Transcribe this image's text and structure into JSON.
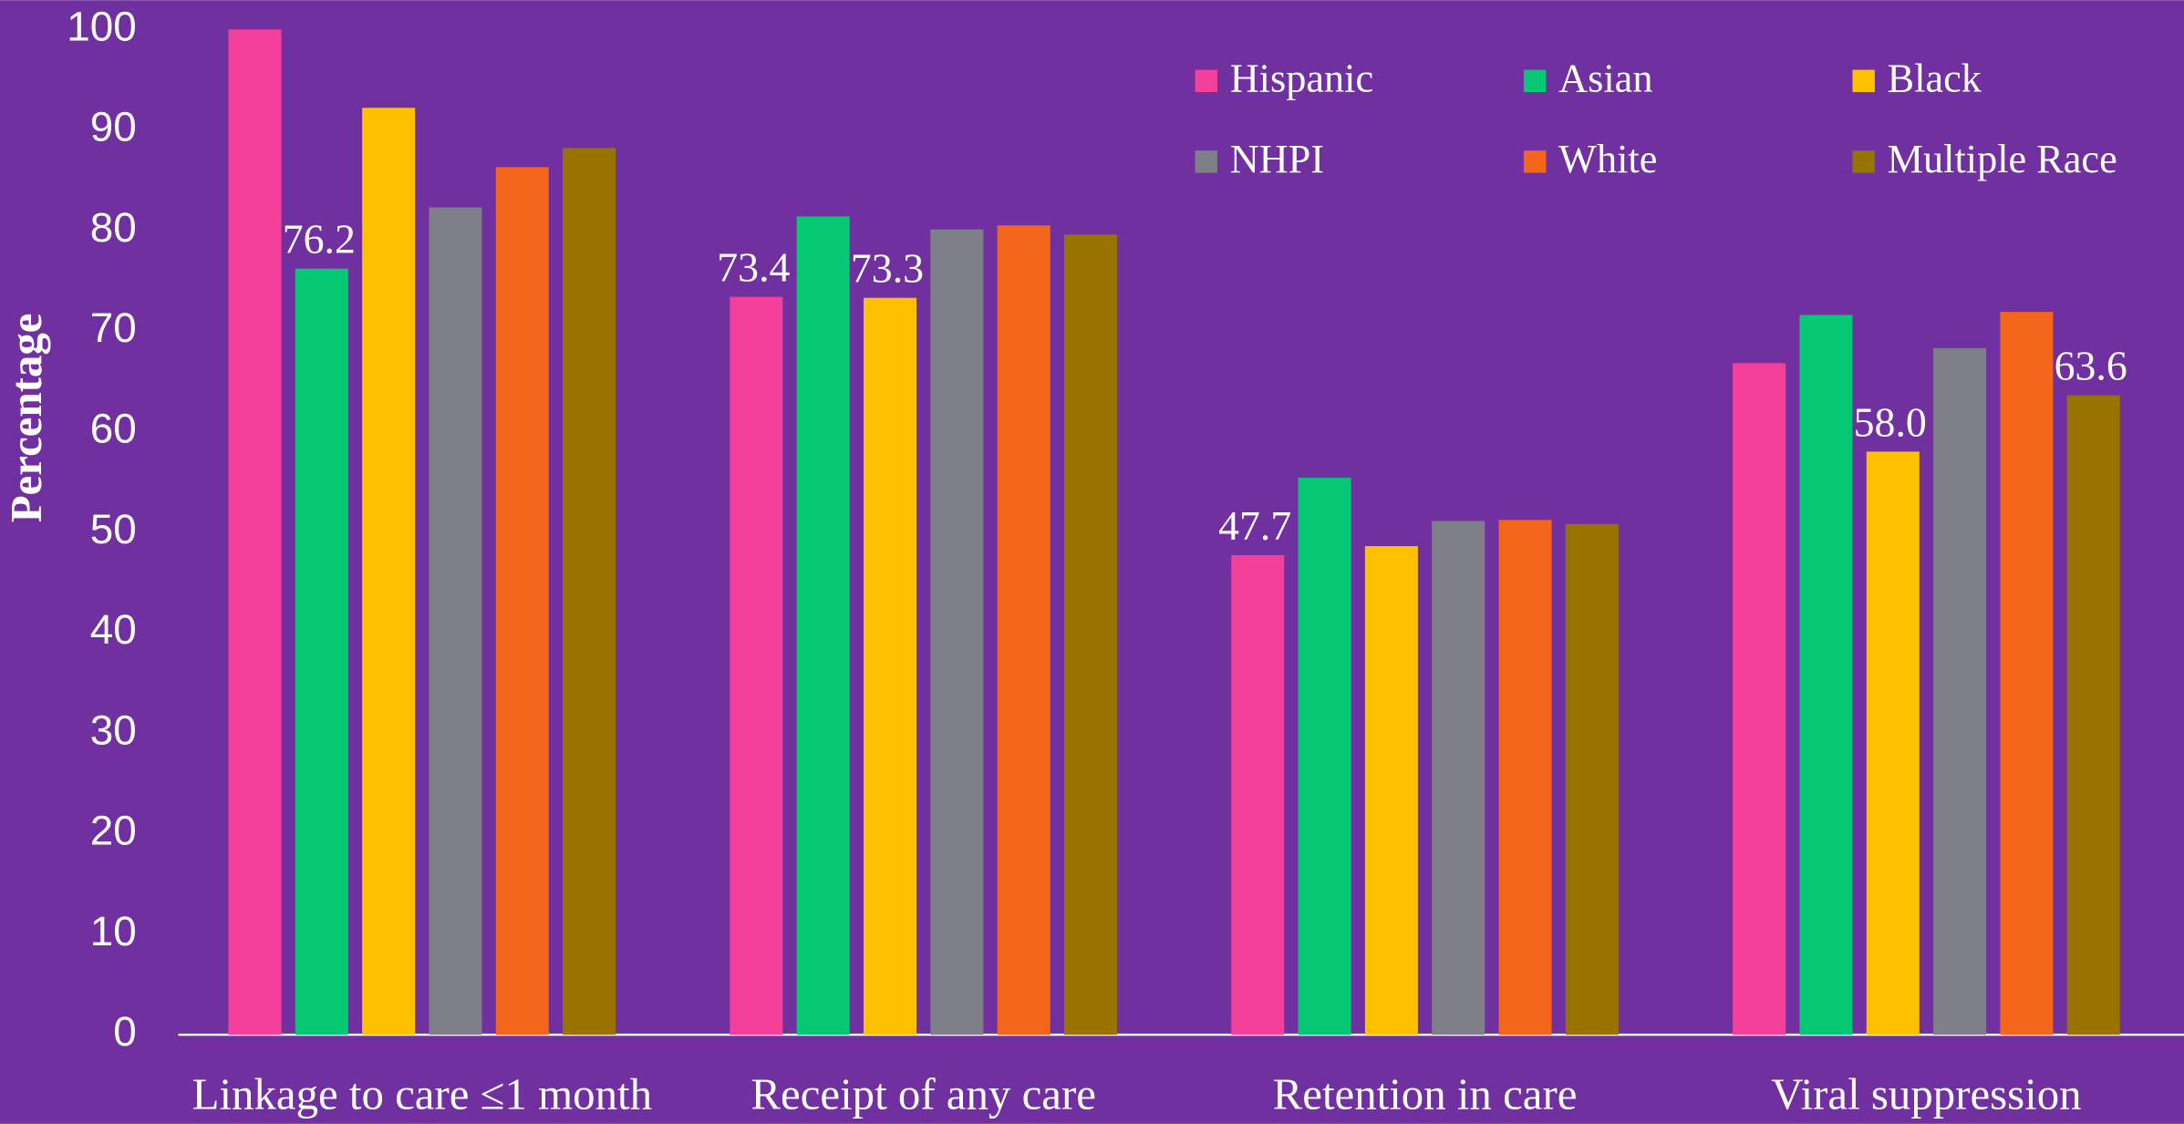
{
  "chart_data": {
    "type": "bar",
    "y_label": "Percentage",
    "categories": [
      "Linkage to care ≤1 month",
      "Receipt of any care",
      "Retention in care",
      "Viral suppression"
    ],
    "series": [
      {
        "name": "Hispanic",
        "color": "#f43f9b",
        "values": [
          100,
          73.4,
          47.7,
          66.8
        ],
        "value_labels": [
          null,
          "73.4",
          "47.7",
          null
        ]
      },
      {
        "name": "Asian",
        "color": "#06c874",
        "values": [
          76.2,
          81.4,
          55.4,
          71.6
        ],
        "value_labels": [
          "76.2",
          null,
          null,
          null
        ]
      },
      {
        "name": "Black",
        "color": "#ffc000",
        "values": [
          92.2,
          73.3,
          48.6,
          58
        ],
        "value_labels": [
          null,
          "73.3",
          null,
          "58.0"
        ]
      },
      {
        "name": "NHPI",
        "color": "#7f7f87",
        "values": [
          82.3,
          80.1,
          51.1,
          68.3
        ],
        "value_labels": [
          null,
          null,
          null,
          null
        ]
      },
      {
        "name": "White",
        "color": "#f4661b",
        "values": [
          86.3,
          80.5,
          51.2,
          71.9
        ],
        "value_labels": [
          null,
          null,
          null,
          null
        ]
      },
      {
        "name": "Multiple Race",
        "color": "#997300",
        "values": [
          88.2,
          79.6,
          50.8,
          63.6
        ],
        "value_labels": [
          null,
          null,
          null,
          "63.6"
        ]
      }
    ],
    "ylim": [
      0,
      100
    ],
    "yticks": [
      0,
      10,
      20,
      30,
      40,
      50,
      60,
      70,
      80,
      90,
      100
    ],
    "grid": false,
    "legend": "top-right",
    "background": "#7030a0"
  }
}
